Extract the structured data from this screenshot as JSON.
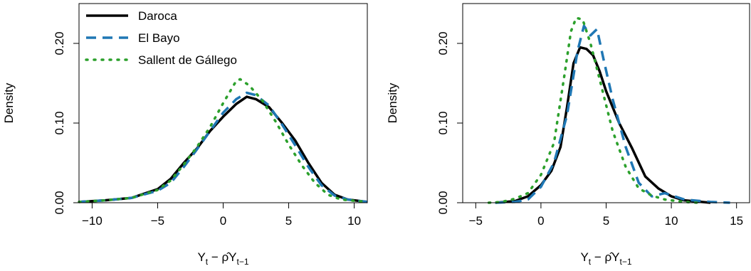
{
  "chart_data": [
    {
      "type": "line",
      "title": "",
      "ylabel": "Density",
      "xlabel": "Y_t − ρ̂Y_{t−1}",
      "xlim": [
        -11,
        11
      ],
      "ylim": [
        0,
        0.25
      ],
      "xticks": [
        -10,
        -5,
        0,
        5,
        10
      ],
      "xtick_labels": [
        "−10",
        "−5",
        "0",
        "5",
        "10"
      ],
      "yticks": [
        0.0,
        0.1,
        0.2
      ],
      "ytick_labels": [
        "0.00",
        "0.10",
        "0.20"
      ],
      "legend_position": "top-left",
      "zero_line_color": "#bebebe",
      "series": [
        {
          "name": "Daroca",
          "color": "#000000",
          "style": "solid",
          "points": [
            [
              -11,
              0.001
            ],
            [
              -9,
              0.003
            ],
            [
              -7,
              0.006
            ],
            [
              -5,
              0.017
            ],
            [
              -4,
              0.03
            ],
            [
              -3,
              0.05
            ],
            [
              -2,
              0.068
            ],
            [
              -1,
              0.09
            ],
            [
              0,
              0.108
            ],
            [
              1,
              0.124
            ],
            [
              1.8,
              0.133
            ],
            [
              2.5,
              0.13
            ],
            [
              3.5,
              0.12
            ],
            [
              4.5,
              0.1
            ],
            [
              5.5,
              0.078
            ],
            [
              6.5,
              0.05
            ],
            [
              7.5,
              0.025
            ],
            [
              8.5,
              0.01
            ],
            [
              9.5,
              0.004
            ],
            [
              11,
              0.001
            ]
          ]
        },
        {
          "name": "El Bayo",
          "color": "#1f77b4",
          "style": "dashed",
          "points": [
            [
              -11,
              0.001
            ],
            [
              -9,
              0.003
            ],
            [
              -7,
              0.006
            ],
            [
              -5,
              0.015
            ],
            [
              -4,
              0.025
            ],
            [
              -3,
              0.045
            ],
            [
              -2,
              0.067
            ],
            [
              -1,
              0.09
            ],
            [
              0,
              0.113
            ],
            [
              1,
              0.13
            ],
            [
              1.8,
              0.138
            ],
            [
              2.5,
              0.135
            ],
            [
              3.5,
              0.122
            ],
            [
              4.5,
              0.098
            ],
            [
              5.5,
              0.072
            ],
            [
              6.5,
              0.045
            ],
            [
              7.5,
              0.022
            ],
            [
              8.5,
              0.009
            ],
            [
              9.5,
              0.004
            ],
            [
              11,
              0.001
            ]
          ]
        },
        {
          "name": "Sallent de Gállego",
          "color": "#2ca02c",
          "style": "dotted",
          "points": [
            [
              -11,
              0.001
            ],
            [
              -9,
              0.003
            ],
            [
              -7,
              0.006
            ],
            [
              -5,
              0.016
            ],
            [
              -4,
              0.028
            ],
            [
              -3,
              0.048
            ],
            [
              -2,
              0.07
            ],
            [
              -1,
              0.095
            ],
            [
              0,
              0.125
            ],
            [
              1,
              0.153
            ],
            [
              1.3,
              0.155
            ],
            [
              2,
              0.147
            ],
            [
              3,
              0.128
            ],
            [
              4,
              0.102
            ],
            [
              5,
              0.073
            ],
            [
              6,
              0.047
            ],
            [
              7,
              0.025
            ],
            [
              8,
              0.01
            ],
            [
              9,
              0.004
            ],
            [
              11,
              0.001
            ]
          ]
        }
      ]
    },
    {
      "type": "line",
      "title": "",
      "ylabel": "Density",
      "xlabel": "Y_t − ρ̂Y_{t−1}",
      "xlim": [
        -6,
        16
      ],
      "ylim": [
        0,
        0.25
      ],
      "xticks": [
        -5,
        0,
        5,
        10,
        15
      ],
      "xtick_labels": [
        "−5",
        "0",
        "5",
        "10",
        "15"
      ],
      "yticks": [
        0.0,
        0.1,
        0.2
      ],
      "ytick_labels": [
        "0.00",
        "0.10",
        "0.20"
      ],
      "zero_line_color": "#bebebe",
      "series": [
        {
          "name": "Daroca",
          "color": "#000000",
          "style": "solid",
          "points": [
            [
              -3.5,
              0
            ],
            [
              -2,
              0.002
            ],
            [
              -1,
              0.008
            ],
            [
              0,
              0.022
            ],
            [
              0.8,
              0.04
            ],
            [
              1.5,
              0.07
            ],
            [
              2,
              0.12
            ],
            [
              2.5,
              0.175
            ],
            [
              3,
              0.195
            ],
            [
              3.5,
              0.193
            ],
            [
              4,
              0.185
            ],
            [
              4.5,
              0.165
            ],
            [
              5,
              0.14
            ],
            [
              5.5,
              0.12
            ],
            [
              6,
              0.1
            ],
            [
              7,
              0.068
            ],
            [
              8,
              0.033
            ],
            [
              9,
              0.018
            ],
            [
              10,
              0.008
            ],
            [
              11,
              0.003
            ],
            [
              13,
              0
            ]
          ]
        },
        {
          "name": "El Bayo",
          "color": "#1f77b4",
          "style": "dashed",
          "points": [
            [
              -3.5,
              0
            ],
            [
              -2,
              0.001
            ],
            [
              -1,
              0.004
            ],
            [
              0,
              0.02
            ],
            [
              1,
              0.05
            ],
            [
              2,
              0.11
            ],
            [
              2.8,
              0.19
            ],
            [
              3.3,
              0.222
            ],
            [
              3.8,
              0.21
            ],
            [
              4.3,
              0.218
            ],
            [
              4.8,
              0.18
            ],
            [
              5.5,
              0.13
            ],
            [
              6.5,
              0.07
            ],
            [
              7.5,
              0.025
            ],
            [
              8.5,
              0.008
            ],
            [
              9.5,
              0.012
            ],
            [
              11,
              0.004
            ],
            [
              13,
              0.001
            ],
            [
              14.5,
              0
            ]
          ]
        },
        {
          "name": "Sallent de Gállego",
          "color": "#2ca02c",
          "style": "dotted",
          "points": [
            [
              -4,
              0
            ],
            [
              -3,
              0.001
            ],
            [
              -2,
              0.005
            ],
            [
              -1,
              0.012
            ],
            [
              0,
              0.035
            ],
            [
              1,
              0.075
            ],
            [
              1.8,
              0.16
            ],
            [
              2.3,
              0.215
            ],
            [
              2.7,
              0.232
            ],
            [
              3.2,
              0.23
            ],
            [
              3.8,
              0.2
            ],
            [
              4.5,
              0.155
            ],
            [
              5.5,
              0.09
            ],
            [
              6.5,
              0.045
            ],
            [
              7.5,
              0.018
            ],
            [
              8.5,
              0.009
            ],
            [
              9.5,
              0.004
            ],
            [
              11,
              0.001
            ],
            [
              12,
              0
            ]
          ]
        }
      ]
    }
  ]
}
